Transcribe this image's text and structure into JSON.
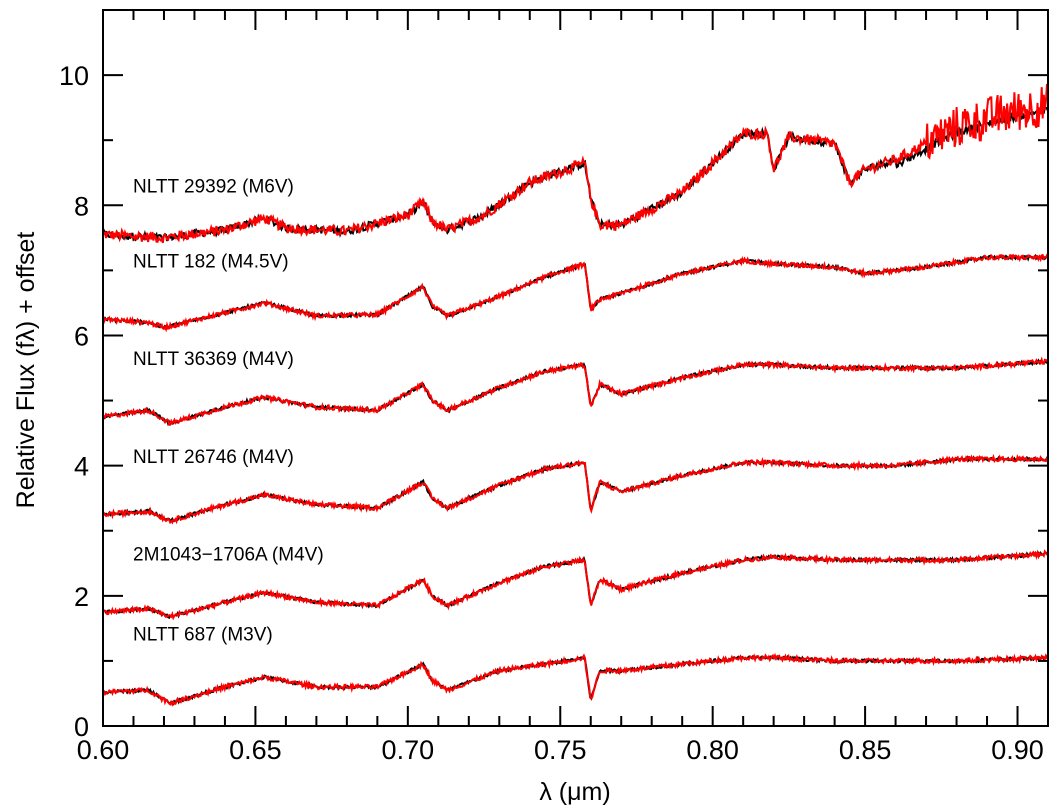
{
  "chart_data": {
    "type": "line",
    "xlabel": "λ (μm)",
    "ylabel": "Relative Flux (fλ) + offset",
    "xlim": [
      0.6,
      0.91
    ],
    "ylim": [
      0,
      11.0
    ],
    "x_ticks": [
      "0.60",
      "0.65",
      "0.70",
      "0.75",
      "0.80",
      "0.85",
      "0.90"
    ],
    "y_ticks": [
      "0",
      "2",
      "4",
      "6",
      "8",
      "10"
    ],
    "colors": {
      "observed": "#000000",
      "template": "#ff0000"
    },
    "spectra": [
      {
        "label": "NLTT 29392 (M6V)",
        "points": [
          [
            0.6,
            7.55
          ],
          [
            0.62,
            7.5
          ],
          [
            0.64,
            7.62
          ],
          [
            0.653,
            7.8
          ],
          [
            0.66,
            7.65
          ],
          [
            0.68,
            7.6
          ],
          [
            0.7,
            7.85
          ],
          [
            0.705,
            8.05
          ],
          [
            0.708,
            7.75
          ],
          [
            0.713,
            7.62
          ],
          [
            0.725,
            7.85
          ],
          [
            0.74,
            8.35
          ],
          [
            0.758,
            8.65
          ],
          [
            0.76,
            8.1
          ],
          [
            0.763,
            7.7
          ],
          [
            0.77,
            7.7
          ],
          [
            0.79,
            8.2
          ],
          [
            0.81,
            9.1
          ],
          [
            0.818,
            9.1
          ],
          [
            0.82,
            8.55
          ],
          [
            0.825,
            9.05
          ],
          [
            0.84,
            8.95
          ],
          [
            0.845,
            8.35
          ],
          [
            0.85,
            8.55
          ],
          [
            0.86,
            8.7
          ],
          [
            0.88,
            9.2
          ],
          [
            0.895,
            9.4
          ],
          [
            0.91,
            9.55
          ]
        ]
      },
      {
        "label": "NLTT 182 (M4.5V)",
        "points": [
          [
            0.6,
            6.25
          ],
          [
            0.615,
            6.2
          ],
          [
            0.62,
            6.12
          ],
          [
            0.64,
            6.35
          ],
          [
            0.653,
            6.5
          ],
          [
            0.67,
            6.3
          ],
          [
            0.69,
            6.32
          ],
          [
            0.705,
            6.75
          ],
          [
            0.708,
            6.45
          ],
          [
            0.713,
            6.3
          ],
          [
            0.73,
            6.6
          ],
          [
            0.745,
            6.9
          ],
          [
            0.758,
            7.1
          ],
          [
            0.76,
            6.4
          ],
          [
            0.763,
            6.55
          ],
          [
            0.77,
            6.65
          ],
          [
            0.79,
            6.95
          ],
          [
            0.81,
            7.15
          ],
          [
            0.82,
            7.1
          ],
          [
            0.84,
            7.05
          ],
          [
            0.85,
            6.95
          ],
          [
            0.87,
            7.05
          ],
          [
            0.89,
            7.2
          ],
          [
            0.91,
            7.2
          ]
        ]
      },
      {
        "label": "NLTT 36369 (M4V)",
        "points": [
          [
            0.6,
            4.75
          ],
          [
            0.615,
            4.85
          ],
          [
            0.622,
            4.65
          ],
          [
            0.64,
            4.9
          ],
          [
            0.653,
            5.05
          ],
          [
            0.67,
            4.9
          ],
          [
            0.69,
            4.85
          ],
          [
            0.705,
            5.25
          ],
          [
            0.708,
            5.0
          ],
          [
            0.713,
            4.85
          ],
          [
            0.73,
            5.2
          ],
          [
            0.745,
            5.45
          ],
          [
            0.758,
            5.55
          ],
          [
            0.76,
            4.9
          ],
          [
            0.763,
            5.25
          ],
          [
            0.77,
            5.1
          ],
          [
            0.79,
            5.35
          ],
          [
            0.81,
            5.55
          ],
          [
            0.82,
            5.55
          ],
          [
            0.84,
            5.5
          ],
          [
            0.86,
            5.5
          ],
          [
            0.88,
            5.5
          ],
          [
            0.91,
            5.6
          ]
        ]
      },
      {
        "label": "NLTT 26746 (M4V)",
        "points": [
          [
            0.6,
            3.25
          ],
          [
            0.615,
            3.3
          ],
          [
            0.622,
            3.15
          ],
          [
            0.64,
            3.4
          ],
          [
            0.653,
            3.55
          ],
          [
            0.67,
            3.4
          ],
          [
            0.69,
            3.35
          ],
          [
            0.705,
            3.75
          ],
          [
            0.708,
            3.5
          ],
          [
            0.713,
            3.35
          ],
          [
            0.73,
            3.7
          ],
          [
            0.745,
            3.95
          ],
          [
            0.758,
            4.05
          ],
          [
            0.76,
            3.3
          ],
          [
            0.763,
            3.75
          ],
          [
            0.77,
            3.6
          ],
          [
            0.79,
            3.85
          ],
          [
            0.81,
            4.05
          ],
          [
            0.82,
            4.05
          ],
          [
            0.84,
            4.0
          ],
          [
            0.86,
            4.0
          ],
          [
            0.88,
            4.1
          ],
          [
            0.91,
            4.1
          ]
        ]
      },
      {
        "label": "2M1043−1706A (M4V)",
        "points": [
          [
            0.6,
            1.75
          ],
          [
            0.615,
            1.8
          ],
          [
            0.622,
            1.68
          ],
          [
            0.64,
            1.9
          ],
          [
            0.653,
            2.05
          ],
          [
            0.67,
            1.9
          ],
          [
            0.69,
            1.85
          ],
          [
            0.705,
            2.25
          ],
          [
            0.708,
            2.0
          ],
          [
            0.713,
            1.85
          ],
          [
            0.73,
            2.2
          ],
          [
            0.745,
            2.45
          ],
          [
            0.758,
            2.55
          ],
          [
            0.76,
            1.85
          ],
          [
            0.763,
            2.25
          ],
          [
            0.77,
            2.1
          ],
          [
            0.79,
            2.35
          ],
          [
            0.81,
            2.55
          ],
          [
            0.82,
            2.6
          ],
          [
            0.84,
            2.55
          ],
          [
            0.86,
            2.55
          ],
          [
            0.88,
            2.55
          ],
          [
            0.91,
            2.65
          ]
        ]
      },
      {
        "label": "NLTT 687 (M3V)",
        "points": [
          [
            0.6,
            0.52
          ],
          [
            0.615,
            0.55
          ],
          [
            0.622,
            0.35
          ],
          [
            0.64,
            0.6
          ],
          [
            0.653,
            0.75
          ],
          [
            0.67,
            0.6
          ],
          [
            0.69,
            0.6
          ],
          [
            0.705,
            0.95
          ],
          [
            0.708,
            0.7
          ],
          [
            0.713,
            0.55
          ],
          [
            0.73,
            0.85
          ],
          [
            0.745,
            0.95
          ],
          [
            0.758,
            1.05
          ],
          [
            0.76,
            0.4
          ],
          [
            0.763,
            0.85
          ],
          [
            0.77,
            0.85
          ],
          [
            0.79,
            0.95
          ],
          [
            0.81,
            1.05
          ],
          [
            0.82,
            1.05
          ],
          [
            0.84,
            1.0
          ],
          [
            0.86,
            1.0
          ],
          [
            0.88,
            1.0
          ],
          [
            0.91,
            1.05
          ]
        ]
      }
    ]
  }
}
